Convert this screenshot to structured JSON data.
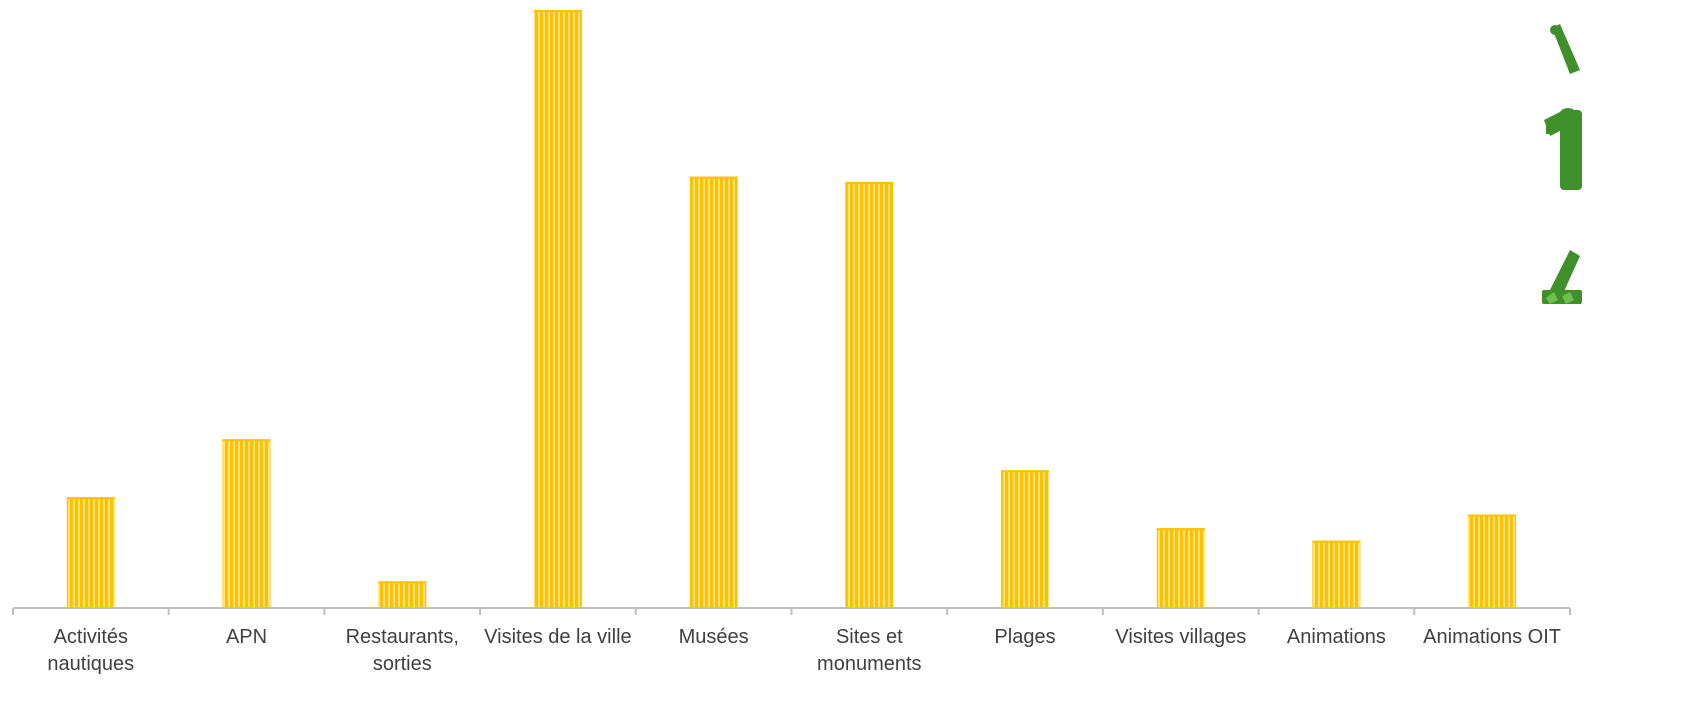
{
  "chart_data": {
    "type": "bar",
    "categories": [
      [
        "Activités",
        "nautiques"
      ],
      [
        "APN"
      ],
      [
        "Restaurants,",
        "sorties"
      ],
      [
        "Visites de la ville"
      ],
      [
        "Musées"
      ],
      [
        "Sites et",
        "monuments"
      ],
      [
        "Plages"
      ],
      [
        "Visites villages"
      ],
      [
        "Animations"
      ],
      [
        "Animations OIT"
      ]
    ],
    "values": [
      18.4,
      28.1,
      4.3,
      100,
      72.1,
      71.2,
      22.9,
      13.2,
      11.1,
      15.5
    ],
    "ylim": [
      0,
      100
    ],
    "title": "",
    "xlabel": "",
    "ylabel": "",
    "grid": false,
    "legend": "none",
    "colors": {
      "bar": "#FFC000",
      "bar_stripe": "#FFE27A",
      "axis": "#BFBFBF",
      "tick_text": "#404040",
      "icon": "#3F8F2A"
    }
  },
  "decoration": {
    "icon": "standing-person-figure-icon"
  }
}
